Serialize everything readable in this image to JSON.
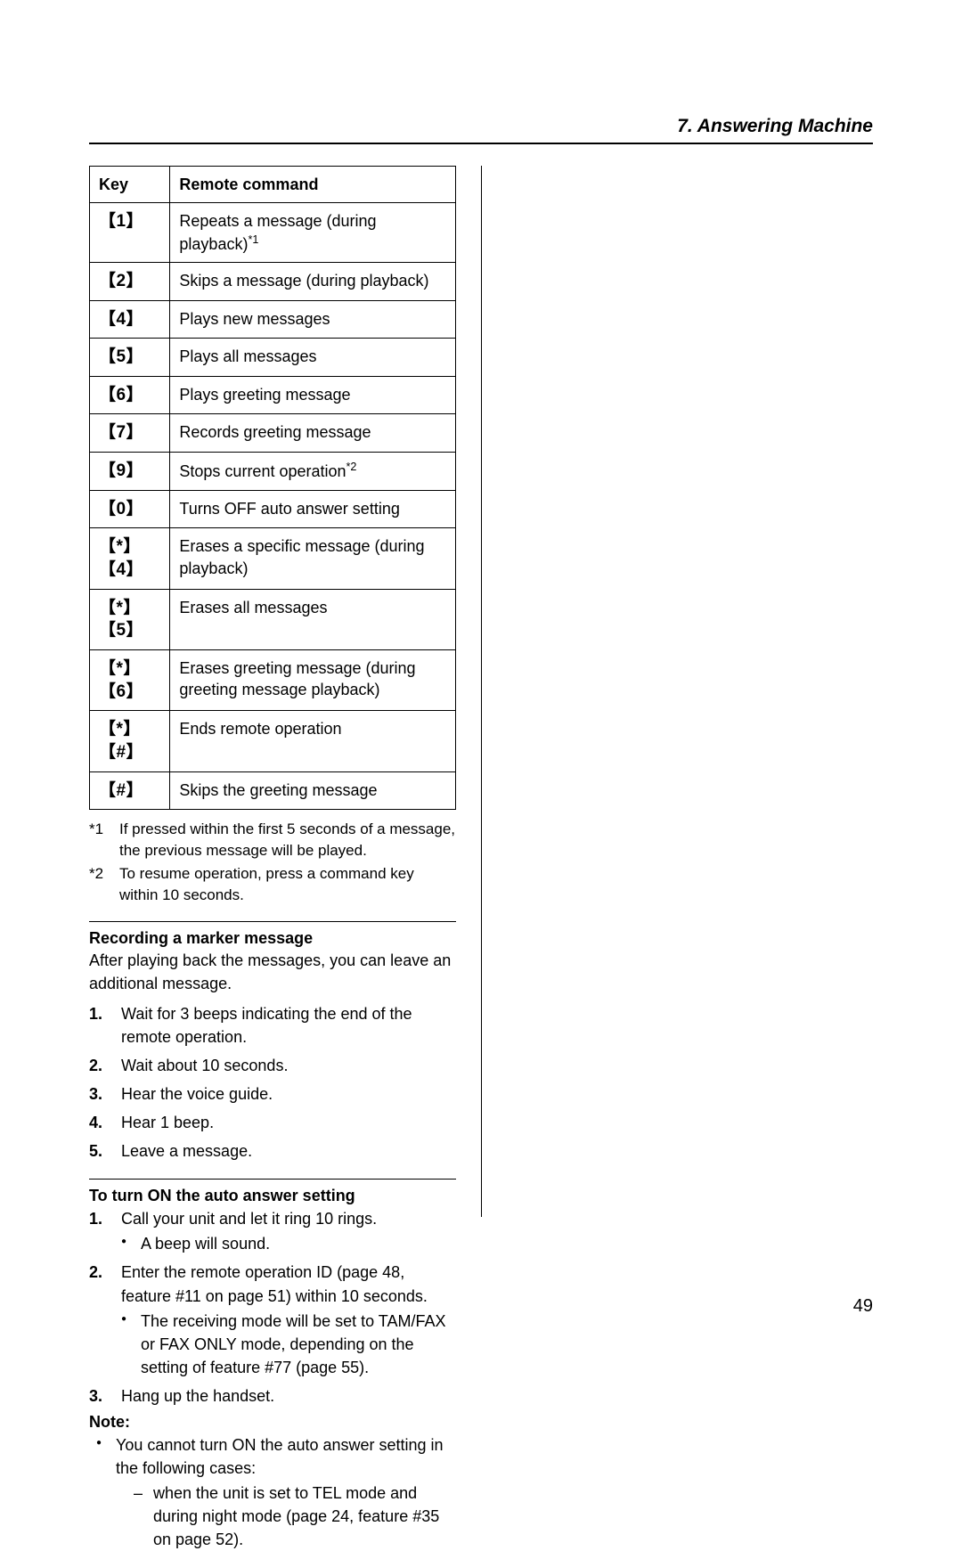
{
  "chapter": "7. Answering Machine",
  "table": {
    "headers": [
      "Key",
      "Remote command"
    ],
    "rows": [
      {
        "key": "【1】",
        "cmd": "Repeats a message (during playback)",
        "sup": "*1"
      },
      {
        "key": "【2】",
        "cmd": "Skips a message (during playback)"
      },
      {
        "key": "【4】",
        "cmd": "Plays new messages"
      },
      {
        "key": "【5】",
        "cmd": "Plays all messages"
      },
      {
        "key": "【6】",
        "cmd": "Plays greeting message"
      },
      {
        "key": "【7】",
        "cmd": "Records greeting message"
      },
      {
        "key": "【9】",
        "cmd": "Stops current operation",
        "sup": "*2"
      },
      {
        "key": "【0】",
        "cmd": "Turns OFF auto answer setting"
      },
      {
        "key": "【*】【4】",
        "cmd": "Erases a specific message (during playback)"
      },
      {
        "key": "【*】【5】",
        "cmd": "Erases all messages"
      },
      {
        "key": "【*】【6】",
        "cmd": "Erases greeting message (during greeting message playback)"
      },
      {
        "key": "【*】【#】",
        "cmd": "Ends remote operation"
      },
      {
        "key": "【#】",
        "cmd": "Skips the greeting message"
      }
    ]
  },
  "footnotes": [
    {
      "marker": "*1",
      "text": "If pressed within the first 5 seconds of a message, the previous message will be played."
    },
    {
      "marker": "*2",
      "text": "To resume operation, press a command key within 10 seconds."
    }
  ],
  "section1": {
    "heading": "Recording a marker message",
    "intro": "After playing back the messages, you can leave an additional message.",
    "steps": [
      "Wait for 3 beeps indicating the end of the remote operation.",
      "Wait about 10 seconds.",
      "Hear the voice guide.",
      "Hear 1 beep.",
      "Leave a message."
    ]
  },
  "section2": {
    "heading": "To turn ON the auto answer setting",
    "steps": [
      {
        "text": "Call your unit and let it ring 10 rings.",
        "bullets": [
          "A beep will sound."
        ]
      },
      {
        "text": "Enter the remote operation ID (page 48, feature #11 on page 51) within 10 seconds.",
        "bullets": [
          "The receiving mode will be set to TAM/FAX or FAX ONLY mode, depending on the setting of feature #77 (page 55)."
        ]
      },
      {
        "text": "Hang up the handset."
      }
    ]
  },
  "note": {
    "label": "Note:",
    "bullets": [
      {
        "text": "You cannot turn ON the auto answer setting in the following cases:",
        "dashes": [
          "when the unit is set to TEL mode and during night mode (page 24, feature #35 on page 52)."
        ]
      }
    ]
  },
  "pageNumber": "49"
}
